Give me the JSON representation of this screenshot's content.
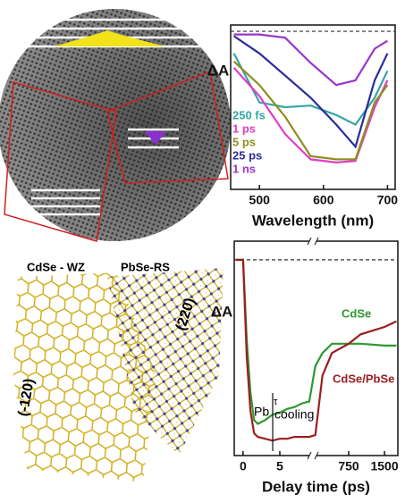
{
  "chart_data": [
    {
      "type": "line",
      "y_label": "ΔA",
      "x_label": "Wavelength (nm)",
      "x": [
        460,
        500,
        540,
        580,
        620,
        650,
        680,
        700
      ],
      "xlim": [
        455,
        712
      ],
      "xticks": [
        500,
        600,
        700
      ],
      "ylim": [
        -1.0,
        0.04
      ],
      "reference_line": 0,
      "series": [
        {
          "name": "250 fs",
          "color": "#35a6a6",
          "values": [
            -0.14,
            -0.45,
            -0.48,
            -0.47,
            -0.53,
            -0.59,
            -0.42,
            -0.25
          ]
        },
        {
          "name": "1 ps",
          "color": "#e23cc8",
          "values": [
            -0.23,
            -0.41,
            -0.65,
            -0.81,
            -0.83,
            -0.82,
            -0.48,
            -0.31
          ]
        },
        {
          "name": "5 ps",
          "color": "#8e8e1e",
          "values": [
            -0.19,
            -0.34,
            -0.54,
            -0.79,
            -0.81,
            -0.81,
            -0.45,
            -0.34
          ]
        },
        {
          "name": "25 ps",
          "color": "#2b2b9c",
          "values": [
            -0.03,
            -0.14,
            -0.28,
            -0.42,
            -0.59,
            -0.73,
            -0.31,
            -0.14
          ]
        },
        {
          "name": "1 ns",
          "color": "#9a35c8",
          "values": [
            -0.02,
            -0.02,
            -0.04,
            -0.2,
            -0.34,
            -0.31,
            -0.11,
            -0.06
          ]
        }
      ]
    },
    {
      "type": "broken-line",
      "y_label": "ΔA",
      "x_label": "Delay time (ps)",
      "x": [
        -1,
        0,
        0.5,
        1,
        1.5,
        2,
        3,
        4,
        5,
        6,
        7,
        8,
        9,
        50,
        200,
        400,
        750,
        1000,
        1500,
        1750
      ],
      "x_segments": [
        {
          "xlim": [
            -1.2,
            9.5
          ],
          "xticks": [
            0,
            5
          ]
        },
        {
          "xlim": [
            0,
            1780
          ],
          "xticks": [
            750,
            1500
          ]
        }
      ],
      "ylim": [
        -1.05,
        0.1
      ],
      "reference_line": 0,
      "annotations": [
        "Pb",
        "τ",
        "cooling"
      ],
      "series": [
        {
          "name": "CdSe",
          "color": "#2e9a2e",
          "values": [
            0,
            0,
            -0.43,
            -0.71,
            -0.86,
            -0.88,
            -0.86,
            -0.83,
            -0.82,
            -0.8,
            -0.79,
            -0.77,
            -0.76,
            -0.57,
            -0.5,
            -0.45,
            -0.45,
            -0.45,
            -0.46,
            -0.46
          ]
        },
        {
          "name": "CdSe/PbSe",
          "color": "#9a1e22",
          "values": [
            0,
            0,
            -0.52,
            -0.81,
            -0.93,
            -0.95,
            -0.96,
            -0.97,
            -0.96,
            -0.96,
            -0.95,
            -0.95,
            -0.95,
            -0.94,
            -0.62,
            -0.5,
            -0.45,
            -0.4,
            -0.36,
            -0.33
          ]
        }
      ]
    }
  ],
  "structure": {
    "labels": [
      "CdSe - WZ",
      "PbSe-RS",
      "(220)",
      "(-120)"
    ]
  }
}
